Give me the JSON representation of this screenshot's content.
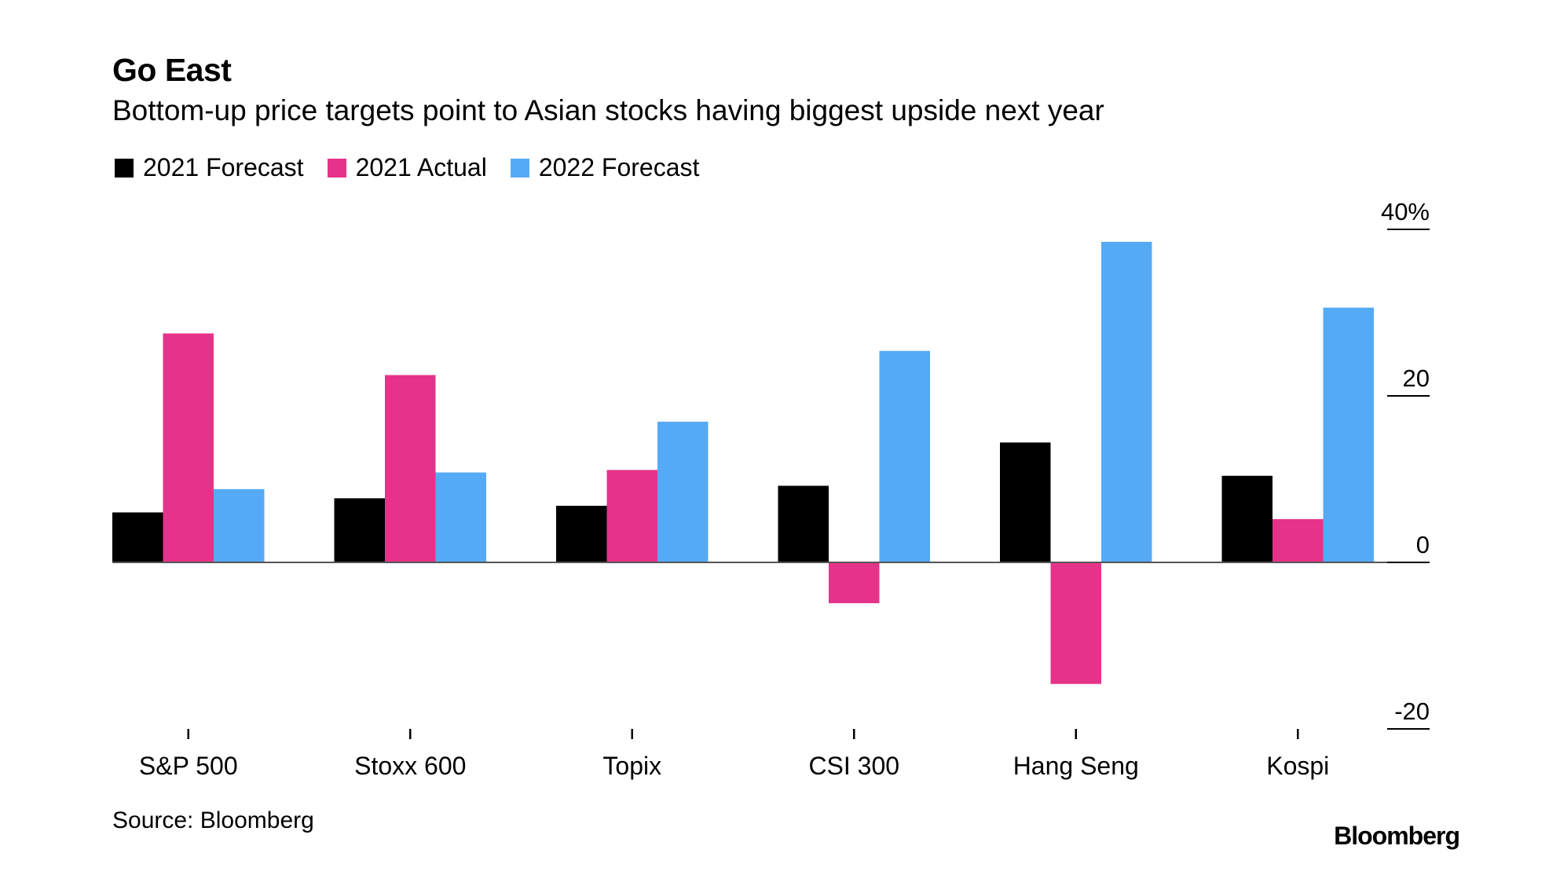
{
  "header": {
    "title": "Go East",
    "subtitle": "Bottom-up price targets point to Asian stocks having biggest upside next year"
  },
  "legend": [
    {
      "label": "2021 Forecast",
      "color": "#000000"
    },
    {
      "label": "2021 Actual",
      "color": "#e5338a"
    },
    {
      "label": "2022 Forecast",
      "color": "#55aaf5"
    }
  ],
  "footer": {
    "source": "Source: Bloomberg",
    "brand": "Bloomberg"
  },
  "chart_data": {
    "type": "bar",
    "categories": [
      "S&P 500",
      "Stoxx 600",
      "Topix",
      "CSI 300",
      "Hang Seng",
      "Kospi"
    ],
    "series": [
      {
        "name": "2021 Forecast",
        "color": "#000000",
        "values": [
          6.0,
          7.7,
          6.8,
          9.2,
          14.4,
          10.4
        ]
      },
      {
        "name": "2021 Actual",
        "color": "#e5338a",
        "values": [
          27.5,
          22.5,
          11.1,
          -4.9,
          -14.6,
          5.2
        ]
      },
      {
        "name": "2022 Forecast",
        "color": "#55aaf5",
        "values": [
          8.8,
          10.8,
          16.9,
          25.4,
          38.5,
          30.6
        ]
      }
    ],
    "ylim": [
      -20,
      40
    ],
    "yticks": [
      {
        "value": 40,
        "label": "40%"
      },
      {
        "value": 20,
        "label": "20"
      },
      {
        "value": 0,
        "label": "0"
      },
      {
        "value": -20,
        "label": "-20"
      }
    ],
    "grid": false,
    "legend_position": "top-left"
  }
}
